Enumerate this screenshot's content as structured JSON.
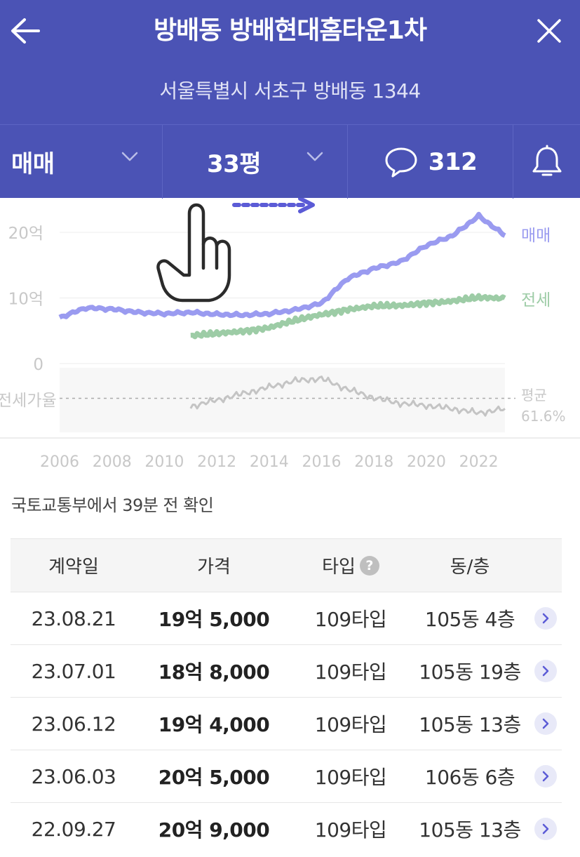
{
  "header": {
    "title": "방배동 방배현대홈타운1차",
    "address": "서울특별시 서초구 방배동 1344"
  },
  "filters": {
    "deal_type": "매매",
    "size": "33평",
    "comment_count": "312"
  },
  "chart_data": {
    "type": "line",
    "x": [
      2006,
      2007,
      2008,
      2009,
      2010,
      2011,
      2012,
      2013,
      2014,
      2015,
      2016,
      2017,
      2018,
      2019,
      2020,
      2021,
      2022,
      2023
    ],
    "series": [
      {
        "name": "매매",
        "color": "#9a9bf0",
        "values": [
          7.0,
          8.5,
          8.3,
          7.8,
          7.6,
          7.8,
          7.5,
          7.4,
          7.6,
          8.2,
          9.2,
          13.0,
          14.5,
          15.5,
          18.0,
          19.5,
          22.5,
          19.5
        ]
      },
      {
        "name": "전세",
        "color": "#9dcca6",
        "values": [
          null,
          null,
          null,
          null,
          null,
          4.2,
          4.5,
          5.0,
          5.5,
          6.5,
          7.5,
          8.3,
          8.7,
          8.8,
          9.3,
          9.5,
          10.0,
          10.0
        ]
      }
    ],
    "yticks": [
      "20억",
      "10억",
      "0"
    ],
    "ylim": [
      0,
      25
    ],
    "xticks": [
      "2006",
      "2008",
      "2010",
      "2012",
      "2014",
      "2016",
      "2018",
      "2020",
      "2022"
    ],
    "ratio_label": "전세가율",
    "ratio_avg_label": "평균",
    "ratio_avg_value": "61.6%",
    "ratio_series": [
      null,
      null,
      null,
      null,
      null,
      54,
      60,
      66,
      72,
      78,
      80,
      70,
      62,
      57,
      55,
      52,
      48,
      52
    ]
  },
  "source_note": "국토교통부에서 39분 전 확인",
  "table": {
    "headers": {
      "date": "계약일",
      "price": "가격",
      "type": "타입",
      "help": "?",
      "location": "동/층"
    },
    "rows": [
      {
        "date": "23.08.21",
        "price": "19억 5,000",
        "type": "109타입",
        "location": "105동 4층"
      },
      {
        "date": "23.07.01",
        "price": "18억 8,000",
        "type": "109타입",
        "location": "105동 19층"
      },
      {
        "date": "23.06.12",
        "price": "19억 4,000",
        "type": "109타입",
        "location": "105동 13층"
      },
      {
        "date": "23.06.03",
        "price": "20억 5,000",
        "type": "109타입",
        "location": "106동 6층"
      },
      {
        "date": "22.09.27",
        "price": "20억 9,000",
        "type": "109타입",
        "location": "105동 13층"
      }
    ]
  },
  "colors": {
    "header_bg": "#4b53b5",
    "sale_line": "#9a9bf0",
    "jeonse_line": "#9dcca6",
    "ratio_line": "#c4c4c4",
    "accent": "#5b5bd6"
  },
  "icons": [
    "back-arrow-icon",
    "close-icon",
    "chevron-down-icon",
    "speech-bubble-icon",
    "bell-icon",
    "swipe-hand-icon",
    "dotted-arrow-icon",
    "question-icon",
    "chevron-right-icon"
  ]
}
